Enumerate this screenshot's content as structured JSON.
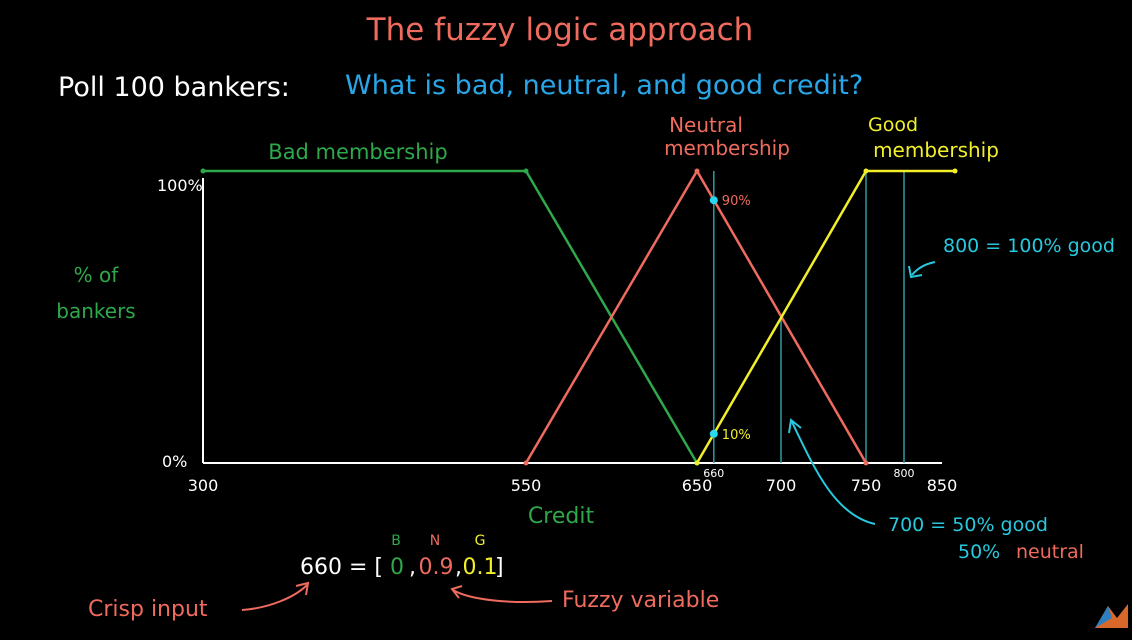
{
  "title": "The fuzzy logic approach",
  "question": {
    "prefix": "Poll 100 bankers:",
    "text": "What is bad, neutral, and good credit?"
  },
  "colors": {
    "title": "#ef6b5e",
    "bad": "#2ea84a",
    "neutral": "#ef6b5e",
    "good": "#f2ef2a",
    "annotation": "#28c8de",
    "axis": "#ffffff",
    "marker": "#28d8f0"
  },
  "chart_data": {
    "type": "line",
    "x_range": [
      300,
      850
    ],
    "y_range": [
      0,
      100
    ],
    "x_ticks": [
      "300",
      "550",
      "650",
      "700",
      "750",
      "850"
    ],
    "x_small_ticks": [
      "660",
      "800"
    ],
    "y_ticks": [
      "0%",
      "100%"
    ],
    "xlabel": "Credit",
    "ylabel_lines": [
      "% of",
      "bankers"
    ],
    "series": [
      {
        "label_lines": [
          "Bad membership"
        ],
        "key": "bad",
        "x": [
          300,
          550,
          650
        ],
        "y": [
          100,
          100,
          0
        ]
      },
      {
        "label_lines": [
          "Neutral",
          "membership"
        ],
        "key": "neutral",
        "x": [
          550,
          650,
          750
        ],
        "y": [
          0,
          100,
          0
        ]
      },
      {
        "label_lines": [
          "Good",
          "membership"
        ],
        "key": "good",
        "x": [
          650,
          750,
          850
        ],
        "y": [
          0,
          100,
          100
        ]
      }
    ],
    "guides": [
      {
        "x": 660,
        "y_top": 100
      },
      {
        "x": 700,
        "y_top": 50
      },
      {
        "x": 750,
        "y_top": 100
      },
      {
        "x": 800,
        "y_top": 100
      }
    ],
    "markers": [
      {
        "x": 660,
        "y": 90,
        "label": "90%"
      },
      {
        "x": 660,
        "y": 10,
        "label": "10%"
      }
    ]
  },
  "annotations": {
    "good_100": "800 = 100% good",
    "mix_line1": "700 = 50% good",
    "mix_line2_value": "50%",
    "mix_line2_word": "neutral"
  },
  "fuzzy": {
    "letters": [
      "B",
      "N",
      "G"
    ],
    "lhs": "660 = [",
    "values": [
      "0",
      "0.9",
      "0.1"
    ],
    "close": "]",
    "crisp_label": "Crisp input",
    "fuzzy_label": "Fuzzy variable"
  }
}
